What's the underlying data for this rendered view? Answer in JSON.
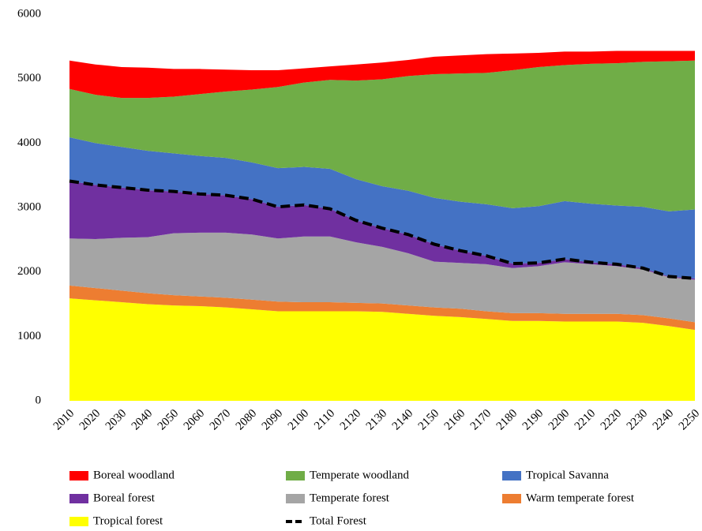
{
  "chart_data": {
    "type": "area",
    "stacked": true,
    "categories": [
      2010,
      2020,
      2030,
      2040,
      2050,
      2060,
      2070,
      2080,
      2090,
      2100,
      2110,
      2120,
      2130,
      2140,
      2150,
      2160,
      2170,
      2180,
      2190,
      2200,
      2210,
      2220,
      2230,
      2240,
      2250
    ],
    "ylim": [
      0,
      6000
    ],
    "yticks": [
      0,
      1000,
      2000,
      3000,
      4000,
      5000,
      6000
    ],
    "grid": false,
    "series": [
      {
        "name": "Boreal woodland",
        "color": "#ff0000",
        "values": [
          440,
          470,
          480,
          470,
          430,
          390,
          340,
          300,
          260,
          220,
          210,
          250,
          260,
          250,
          270,
          280,
          290,
          260,
          220,
          210,
          190,
          190,
          170,
          160,
          150
        ]
      },
      {
        "name": "Temperate woodland",
        "color": "#70ad47",
        "values": [
          750,
          750,
          760,
          820,
          880,
          960,
          1030,
          1130,
          1260,
          1310,
          1380,
          1530,
          1660,
          1780,
          1920,
          1990,
          2040,
          2140,
          2160,
          2110,
          2170,
          2210,
          2250,
          2330,
          2310
        ]
      },
      {
        "name": "Tropical Savanna",
        "color": "#4472c4",
        "values": [
          680,
          650,
          630,
          610,
          590,
          590,
          580,
          570,
          600,
          590,
          620,
          640,
          650,
          680,
          720,
          760,
          800,
          860,
          880,
          900,
          910,
          910,
          950,
          1010,
          1070
        ]
      },
      {
        "name": "Boreal forest",
        "color": "#7030a0",
        "values": [
          890,
          840,
          780,
          730,
          650,
          600,
          580,
          550,
          490,
          490,
          430,
          340,
          290,
          290,
          270,
          190,
          130,
          70,
          50,
          50,
          30,
          30,
          20,
          10,
          20
        ]
      },
      {
        "name": "Temperate forest",
        "color": "#a5a5a5",
        "values": [
          730,
          760,
          820,
          870,
          960,
          990,
          1010,
          1010,
          980,
          1020,
          1020,
          940,
          880,
          810,
          710,
          710,
          730,
          700,
          730,
          800,
          770,
          740,
          710,
          640,
          660
        ]
      },
      {
        "name": "Warm temperate forest",
        "color": "#ed7d31",
        "values": [
          200,
          190,
          180,
          170,
          160,
          150,
          150,
          150,
          150,
          140,
          140,
          130,
          130,
          130,
          130,
          130,
          120,
          120,
          120,
          120,
          120,
          120,
          120,
          120,
          120
        ]
      },
      {
        "name": "Tropical forest",
        "color": "#ffff00",
        "values": [
          1590,
          1560,
          1530,
          1500,
          1480,
          1470,
          1450,
          1420,
          1390,
          1390,
          1390,
          1390,
          1380,
          1350,
          1320,
          1300,
          1270,
          1240,
          1240,
          1230,
          1230,
          1230,
          1210,
          1160,
          1100
        ]
      },
      {
        "name": "Total Forest",
        "color": "#000000",
        "type": "line",
        "dashed": true,
        "values": [
          3410,
          3350,
          3310,
          3270,
          3250,
          3210,
          3190,
          3130,
          3010,
          3040,
          2980,
          2800,
          2680,
          2580,
          2430,
          2330,
          2250,
          2130,
          2140,
          2200,
          2150,
          2120,
          2060,
          1930,
          1900
        ]
      }
    ]
  }
}
